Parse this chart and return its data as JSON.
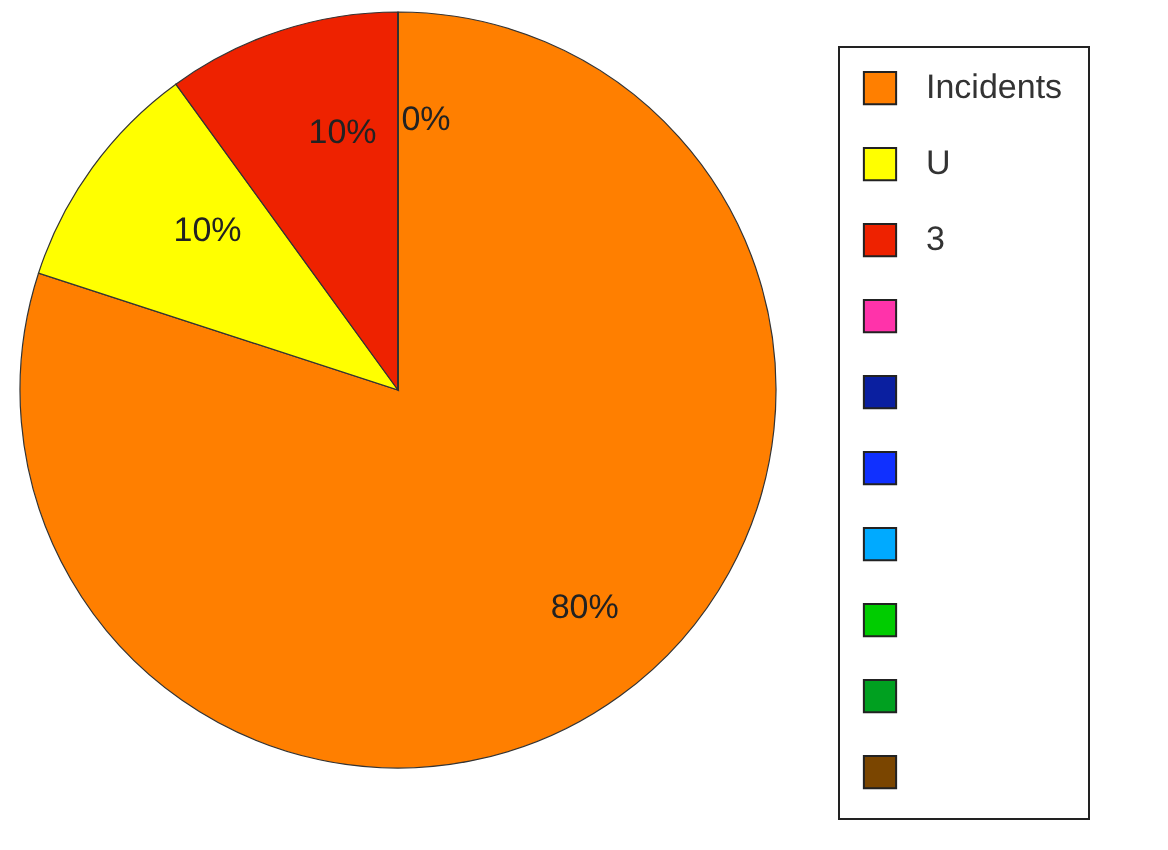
{
  "chart_data": {
    "type": "pie",
    "categories": [
      "Incidents",
      "U",
      "3",
      null,
      null,
      null,
      null,
      null,
      null,
      null
    ],
    "values": [
      80,
      10,
      10,
      0,
      0,
      0,
      0,
      0,
      0,
      0
    ],
    "value_labels": [
      "80%",
      "10%",
      "10%",
      "0%",
      null,
      null,
      null,
      null,
      null,
      null
    ],
    "colors": [
      "#ff7f00",
      "#ffff00",
      "#ee2200",
      "#ff33aa",
      "#0a1fa0",
      "#1030ff",
      "#00aaff",
      "#00cc00",
      "#00a020",
      "#7a4500"
    ],
    "legend": "right"
  }
}
